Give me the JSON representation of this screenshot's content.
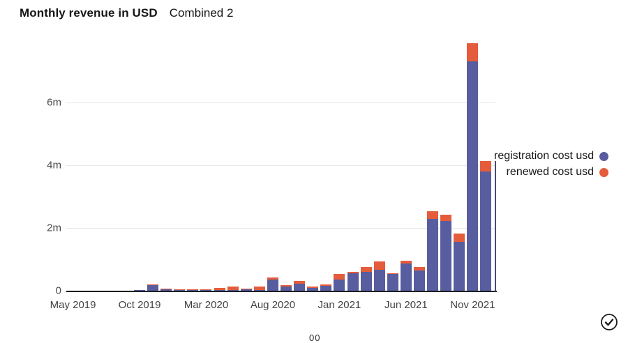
{
  "header": {
    "title": "Monthly revenue in USD",
    "subtitle": "Combined 2"
  },
  "legend": {
    "items": [
      {
        "label": "registration cost usd",
        "color": "#575D9E",
        "clipped": true
      },
      {
        "label": "renewed cost usd",
        "color": "#E45C3B",
        "clipped": false
      }
    ]
  },
  "footer": {
    "clipped_text": "00",
    "check_icon": "check-circle-icon"
  },
  "colors": {
    "registration": "#575D9E",
    "renewed": "#E45C3B",
    "grid": "#e8e8e8",
    "axis_line": "#1b1f24",
    "text": "#161616"
  },
  "chart_data": {
    "type": "bar",
    "stacked": true,
    "title": "Monthly revenue in USD",
    "subtitle": "Combined 2",
    "unit": "USD (m = millions)",
    "grid": "horizontal",
    "legend_position": "right",
    "ylim": [
      0,
      8
    ],
    "y_ticks": [
      {
        "label": "0",
        "value": 0
      },
      {
        "label": "2m",
        "value": 2
      },
      {
        "label": "4m",
        "value": 4
      },
      {
        "label": "6m",
        "value": 6
      }
    ],
    "x_ticks": [
      {
        "label": "May 2019",
        "index": 0
      },
      {
        "label": "Oct 2019",
        "index": 5
      },
      {
        "label": "Mar 2020",
        "index": 10
      },
      {
        "label": "Aug 2020",
        "index": 15
      },
      {
        "label": "Jan 2021",
        "index": 20
      },
      {
        "label": "Jun 2021",
        "index": 25
      },
      {
        "label": "Nov 2021",
        "index": 30
      }
    ],
    "categories": [
      "May 2019",
      "Jun 2019",
      "Jul 2019",
      "Aug 2019",
      "Sep 2019",
      "Oct 2019",
      "Nov 2019",
      "Dec 2019",
      "Jan 2020",
      "Feb 2020",
      "Mar 2020",
      "Apr 2020",
      "May 2020",
      "Jun 2020",
      "Jul 2020",
      "Aug 2020",
      "Sep 2020",
      "Oct 2020",
      "Nov 2020",
      "Dec 2020",
      "Jan 2021",
      "Feb 2021",
      "Mar 2021",
      "Apr 2021",
      "May 2021",
      "Jun 2021",
      "Jul 2021",
      "Aug 2021",
      "Sep 2021",
      "Oct 2021",
      "Nov 2021",
      "Dec 2021"
    ],
    "series": [
      {
        "name": "registration cost usd",
        "color": "#575D9E",
        "values": [
          0,
          0,
          0.01,
          0.01,
          0.01,
          0.02,
          0.2,
          0.06,
          0.03,
          0.02,
          0.02,
          0.02,
          0.03,
          0.04,
          0.03,
          0.36,
          0.13,
          0.22,
          0.09,
          0.15,
          0.35,
          0.55,
          0.6,
          0.67,
          0.53,
          0.87,
          0.64,
          2.29,
          2.22,
          1.56,
          7.31,
          3.8
        ]
      },
      {
        "name": "renewed cost usd",
        "color": "#E45C3B",
        "values": [
          0,
          0,
          0,
          0,
          0,
          0,
          0.01,
          0.01,
          0.01,
          0.03,
          0.03,
          0.07,
          0.1,
          0.03,
          0.1,
          0.06,
          0.05,
          0.09,
          0.04,
          0.05,
          0.18,
          0.05,
          0.16,
          0.27,
          0.03,
          0.09,
          0.11,
          0.25,
          0.2,
          0.27,
          0.58,
          0.33
        ]
      }
    ]
  }
}
